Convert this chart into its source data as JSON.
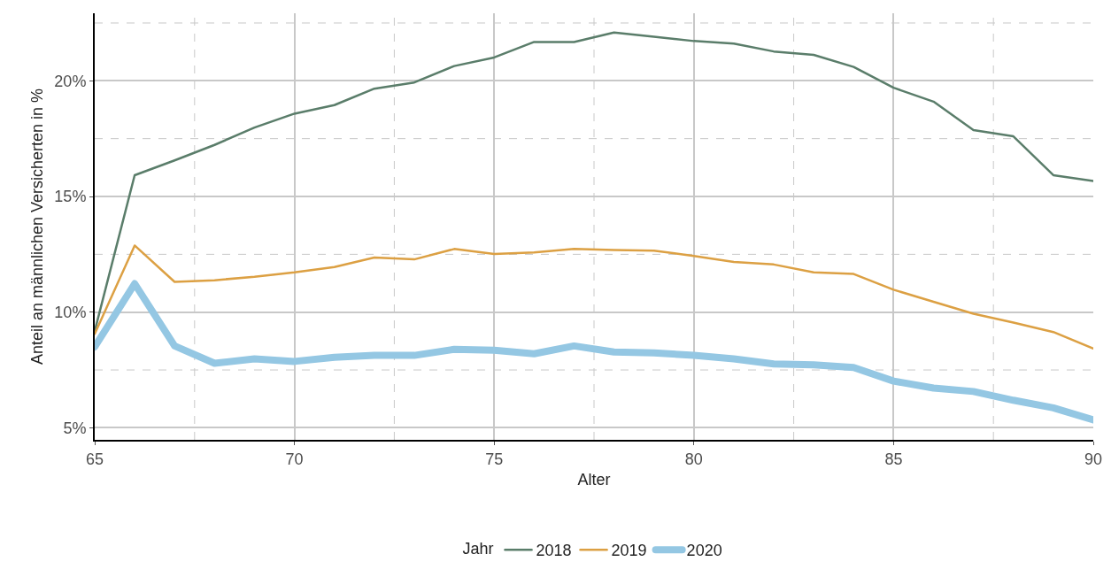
{
  "chart_data": {
    "type": "line",
    "xlabel": "Alter",
    "ylabel": "Anteil an männlichen Versicherten in %",
    "legend_title": "Jahr",
    "x": [
      65,
      66,
      67,
      68,
      69,
      70,
      71,
      72,
      73,
      74,
      75,
      76,
      77,
      78,
      79,
      80,
      81,
      82,
      83,
      84,
      85,
      86,
      87,
      88,
      89,
      90
    ],
    "series": [
      {
        "name": "2018",
        "color": "#5a7d6a",
        "values": [
          9.18,
          15.92,
          16.56,
          17.23,
          17.98,
          18.58,
          18.95,
          19.66,
          19.93,
          20.64,
          21.01,
          21.68,
          21.68,
          22.09,
          21.91,
          21.72,
          21.61,
          21.27,
          21.12,
          20.6,
          19.7,
          19.1,
          17.87,
          17.6,
          15.92,
          15.67
        ]
      },
      {
        "name": "2019",
        "color": "#dca043",
        "values": [
          9.06,
          12.88,
          11.31,
          11.38,
          11.53,
          11.72,
          11.95,
          12.36,
          12.28,
          12.73,
          12.51,
          12.58,
          12.73,
          12.69,
          12.66,
          12.43,
          12.17,
          12.06,
          11.72,
          11.65,
          10.97,
          10.45,
          9.93,
          9.55,
          9.14,
          8.43
        ]
      },
      {
        "name": "2020",
        "color": "#94c7e3",
        "values": [
          8.5,
          11.23,
          8.54,
          7.79,
          7.98,
          7.87,
          8.05,
          8.13,
          8.13,
          8.39,
          8.35,
          8.2,
          8.54,
          8.28,
          8.24,
          8.13,
          7.98,
          7.76,
          7.72,
          7.61,
          7.02,
          6.72,
          6.57,
          6.19,
          5.86,
          5.34
        ]
      }
    ],
    "xlim": [
      65,
      90
    ],
    "xticks": [
      65,
      {
        "value": 67.5,
        "label": null
      },
      70,
      {
        "value": 72.5,
        "label": null
      },
      75,
      {
        "value": 77.5,
        "label": null
      },
      80,
      {
        "value": 82.5,
        "label": null
      },
      85,
      {
        "value": 87.5,
        "label": null
      },
      90
    ],
    "ylim": [
      4.48,
      22.92
    ],
    "yticks": [
      {
        "value": 5,
        "label": "5%"
      },
      {
        "value": 7.5,
        "label": null
      },
      {
        "value": 10,
        "label": "10%"
      },
      {
        "value": 12.5,
        "label": null
      },
      {
        "value": 15,
        "label": "15%"
      },
      {
        "value": 17.5,
        "label": null
      },
      {
        "value": 20,
        "label": "20%"
      },
      {
        "value": 22.5,
        "label": null
      }
    ],
    "grid": true,
    "legend": "bottom",
    "marker": "none",
    "line_style": "solid"
  }
}
